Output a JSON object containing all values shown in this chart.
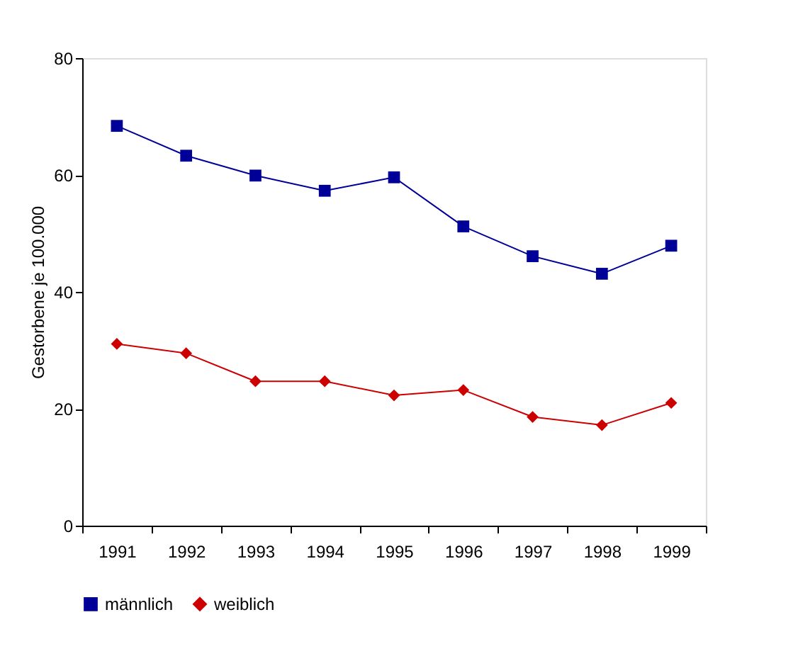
{
  "chart_data": {
    "type": "line",
    "ylabel": "Gestorbene je 100.000",
    "categories": [
      "1991",
      "1992",
      "1993",
      "1994",
      "1995",
      "1996",
      "1997",
      "1998",
      "1999"
    ],
    "series": [
      {
        "name": "männlich",
        "color": "#000099",
        "marker": "square",
        "values": [
          68.4,
          63.3,
          59.9,
          57.3,
          59.6,
          51.2,
          46.1,
          43.1,
          47.9
        ]
      },
      {
        "name": "weiblich",
        "color": "#cc0000",
        "marker": "diamond",
        "values": [
          31.1,
          29.5,
          24.7,
          24.7,
          22.3,
          23.2,
          18.6,
          17.2,
          21.0
        ]
      }
    ],
    "ylim": [
      0,
      80
    ],
    "yticks": [
      0,
      20,
      40,
      60,
      80
    ],
    "grid": false,
    "legend": "bottom",
    "line_style": "solid"
  }
}
